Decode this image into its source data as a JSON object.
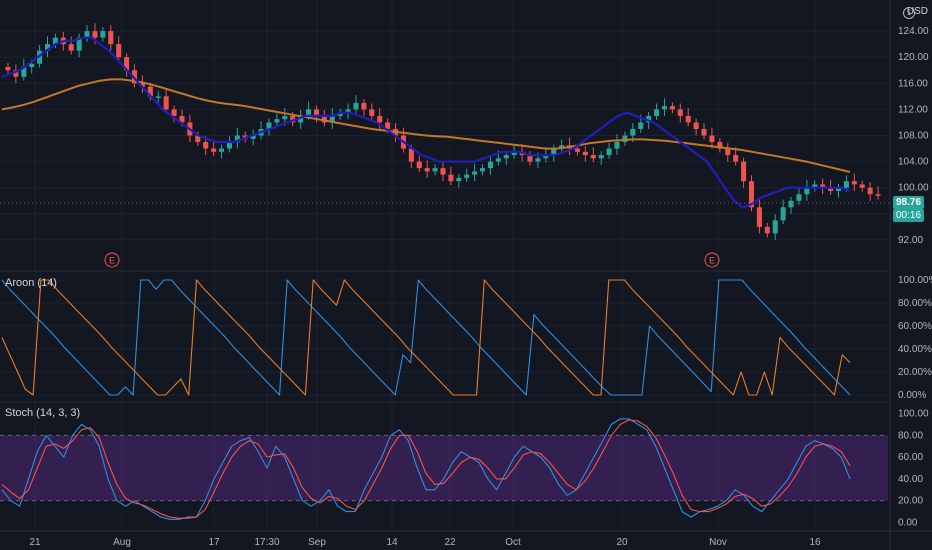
{
  "currency": "USD",
  "price_badge": "98.76",
  "time_badge": "00:16",
  "earnings_marker": "E",
  "panes": {
    "aroon_label": "Aroon (14)",
    "stoch_label": "Stoch (14, 3, 3)"
  },
  "colors": {
    "background": "#131722",
    "up": "#26a69a",
    "down": "#ef5350",
    "ma_fast": "#1f1fb8",
    "ma_slow": "#c6762b",
    "aroon_up": "#e67e22",
    "aroon_down": "#2f8fe0",
    "stoch_k": "#2f8fe0",
    "stoch_d": "#ef5350",
    "stoch_band": "#5b2b8a",
    "price_badge_bg": "#26a69a",
    "earnings": "#ef5350"
  },
  "chart_data": [
    {
      "type": "candlestick",
      "ylabel": "USD",
      "ylim": [
        88,
        128
      ],
      "yticks": [
        "124.00",
        "120.00",
        "116.00",
        "112.00",
        "108.00",
        "104.00",
        "100.00",
        "96.00",
        "92.00"
      ],
      "x_ticks": [
        "21",
        "Aug",
        "17",
        "17:30",
        "Sep",
        "14",
        "22",
        "Oct",
        "20",
        "Nov",
        "16"
      ],
      "last_price": 98.76,
      "close_series": [
        118,
        117,
        118.5,
        119,
        121,
        122,
        123,
        122,
        121,
        123,
        124,
        123,
        124,
        122,
        120,
        118,
        116,
        115.5,
        114,
        114,
        112,
        111,
        110,
        108,
        107,
        106,
        105.5,
        106,
        107,
        108,
        107.5,
        108,
        109,
        110,
        110.5,
        111,
        110,
        111,
        112,
        111,
        110,
        111,
        111.5,
        112,
        113,
        112,
        111,
        110,
        109,
        108,
        106,
        104,
        103,
        102.5,
        103,
        102,
        101,
        101.5,
        102,
        102.5,
        103,
        104,
        104.5,
        105,
        105.5,
        105,
        104,
        104.5,
        105,
        106,
        106.5,
        106,
        105.5,
        105,
        104.5,
        105,
        106,
        107,
        108,
        109,
        110,
        111,
        112,
        112.5,
        112,
        111,
        110,
        109,
        108,
        107,
        106,
        105,
        104,
        101,
        97,
        94,
        93,
        95,
        97,
        98,
        99,
        100,
        100.5,
        100,
        99.5,
        100,
        101,
        100.5,
        100,
        99,
        98.76
      ],
      "ma_fast_series": [
        117,
        117.5,
        118,
        119,
        120,
        121,
        122,
        122.5,
        122.5,
        123,
        123,
        122,
        121,
        119.5,
        118,
        116.5,
        115,
        113.5,
        112,
        111,
        110,
        109,
        108,
        107.5,
        107,
        107,
        107,
        107.5,
        108,
        108.5,
        109,
        109.5,
        110,
        110.5,
        111,
        111,
        111,
        111,
        111.5,
        111.5,
        111,
        110.5,
        110,
        109,
        108,
        107,
        106,
        105,
        104.5,
        104,
        104,
        104,
        104,
        104,
        104.5,
        105,
        105.5,
        105.5,
        105.5,
        105,
        105,
        105,
        105,
        105.5,
        106,
        107,
        108,
        109,
        110,
        111,
        111.5,
        111,
        110.5,
        110,
        109,
        108,
        107,
        106,
        105,
        104,
        102,
        100,
        98,
        97,
        97.5,
        98.5,
        99,
        99.5,
        100,
        100,
        100,
        100,
        100,
        100,
        100,
        99.5
      ],
      "ma_slow_series": [
        112,
        112.3,
        112.7,
        113.2,
        113.8,
        114.4,
        115,
        115.6,
        116,
        116.4,
        116.6,
        116.6,
        116.4,
        116.1,
        115.7,
        115.2,
        114.7,
        114.2,
        113.7,
        113.3,
        113,
        112.8,
        112.6,
        112.3,
        112,
        111.7,
        111.4,
        111.1,
        110.8,
        110.5,
        110.2,
        109.9,
        109.6,
        109.3,
        109,
        108.8,
        108.6,
        108.4,
        108.2,
        108,
        107.9,
        107.8,
        107.6,
        107.4,
        107.2,
        107,
        106.8,
        106.6,
        106.4,
        106.2,
        106,
        106,
        106.2,
        106.5,
        106.8,
        107,
        107.2,
        107.3,
        107.4,
        107.4,
        107.3,
        107.2,
        107,
        106.8,
        106.6,
        106.4,
        106.2,
        106,
        105.8,
        105.5,
        105.2,
        104.9,
        104.6,
        104.3,
        104,
        103.6,
        103.2,
        102.8,
        102.4
      ]
    },
    {
      "type": "line",
      "title": "Aroon (14)",
      "ylim": [
        0,
        100
      ],
      "yticks": [
        "100.00%",
        "80.00%",
        "60.00%",
        "40.00%",
        "20.00%",
        "0.00%"
      ],
      "series": [
        {
          "name": "Aroon Up",
          "values": [
            50,
            35,
            20,
            5,
            0,
            100,
            100,
            92,
            85,
            78,
            71,
            64,
            57,
            50,
            42,
            35,
            28,
            21,
            14,
            7,
            0,
            0,
            7,
            14,
            0,
            100,
            92,
            85,
            78,
            71,
            64,
            57,
            50,
            42,
            35,
            28,
            21,
            14,
            7,
            0,
            100,
            92,
            85,
            78,
            100,
            92,
            85,
            78,
            71,
            64,
            57,
            50,
            42,
            35,
            28,
            21,
            14,
            7,
            0,
            0,
            0,
            0,
            100,
            92,
            85,
            78,
            71,
            64,
            57,
            50,
            42,
            35,
            28,
            21,
            14,
            7,
            0,
            0,
            100,
            100,
            100,
            92,
            85,
            78,
            71,
            64,
            57,
            50,
            42,
            35,
            28,
            21,
            14,
            7,
            0,
            20,
            0,
            0,
            20,
            0,
            50,
            42,
            35,
            28,
            21,
            14,
            7,
            0,
            35,
            28
          ]
        },
        {
          "name": "Aroon Down",
          "values": [
            100,
            92,
            85,
            78,
            71,
            64,
            57,
            50,
            42,
            35,
            28,
            21,
            14,
            7,
            0,
            0,
            7,
            0,
            100,
            100,
            92,
            100,
            100,
            92,
            85,
            78,
            71,
            64,
            57,
            50,
            42,
            35,
            28,
            21,
            14,
            7,
            0,
            100,
            92,
            85,
            78,
            71,
            64,
            57,
            50,
            42,
            35,
            28,
            21,
            14,
            7,
            0,
            35,
            28,
            100,
            92,
            85,
            78,
            71,
            64,
            57,
            50,
            42,
            35,
            28,
            21,
            14,
            7,
            0,
            70,
            62,
            55,
            48,
            41,
            34,
            27,
            20,
            13,
            6,
            0,
            0,
            0,
            0,
            0,
            60,
            52,
            45,
            38,
            31,
            24,
            17,
            10,
            3,
            100,
            100,
            100,
            100,
            92,
            85,
            78,
            71,
            64,
            57,
            50,
            42,
            35,
            28,
            21,
            14,
            7,
            0
          ]
        }
      ]
    },
    {
      "type": "line",
      "title": "Stoch (14, 3, 3)",
      "ylim": [
        -5,
        105
      ],
      "yticks": [
        "100.00",
        "80.00",
        "60.00",
        "40.00",
        "20.00",
        "0.00"
      ],
      "bands": [
        20,
        80
      ],
      "series": [
        {
          "name": "%K",
          "values": [
            30,
            20,
            15,
            40,
            65,
            80,
            70,
            60,
            80,
            90,
            85,
            70,
            40,
            20,
            15,
            20,
            15,
            10,
            5,
            3,
            3,
            5,
            5,
            20,
            40,
            55,
            70,
            75,
            78,
            65,
            50,
            70,
            60,
            40,
            20,
            15,
            20,
            30,
            15,
            10,
            10,
            30,
            45,
            60,
            80,
            85,
            75,
            50,
            30,
            30,
            40,
            55,
            65,
            60,
            55,
            40,
            30,
            45,
            60,
            70,
            65,
            60,
            50,
            35,
            25,
            30,
            45,
            60,
            75,
            90,
            95,
            95,
            90,
            85,
            70,
            50,
            30,
            10,
            5,
            10,
            12,
            15,
            20,
            30,
            25,
            15,
            10,
            20,
            30,
            40,
            55,
            70,
            75,
            72,
            68,
            60,
            40
          ]
        },
        {
          "name": "%D",
          "values": [
            35,
            28,
            22,
            30,
            50,
            70,
            72,
            68,
            75,
            85,
            87,
            78,
            55,
            35,
            22,
            18,
            16,
            12,
            8,
            5,
            4,
            4,
            5,
            12,
            28,
            45,
            60,
            70,
            75,
            72,
            60,
            62,
            63,
            50,
            32,
            22,
            18,
            24,
            22,
            15,
            12,
            20,
            35,
            50,
            68,
            80,
            80,
            65,
            45,
            35,
            36,
            45,
            55,
            60,
            58,
            50,
            40,
            40,
            50,
            62,
            65,
            63,
            55,
            45,
            35,
            30,
            38,
            50,
            65,
            80,
            90,
            94,
            93,
            88,
            78,
            62,
            45,
            25,
            12,
            10,
            10,
            13,
            17,
            24,
            26,
            22,
            15,
            17,
            24,
            33,
            45,
            60,
            70,
            72,
            70,
            65,
            52
          ]
        }
      ]
    }
  ]
}
